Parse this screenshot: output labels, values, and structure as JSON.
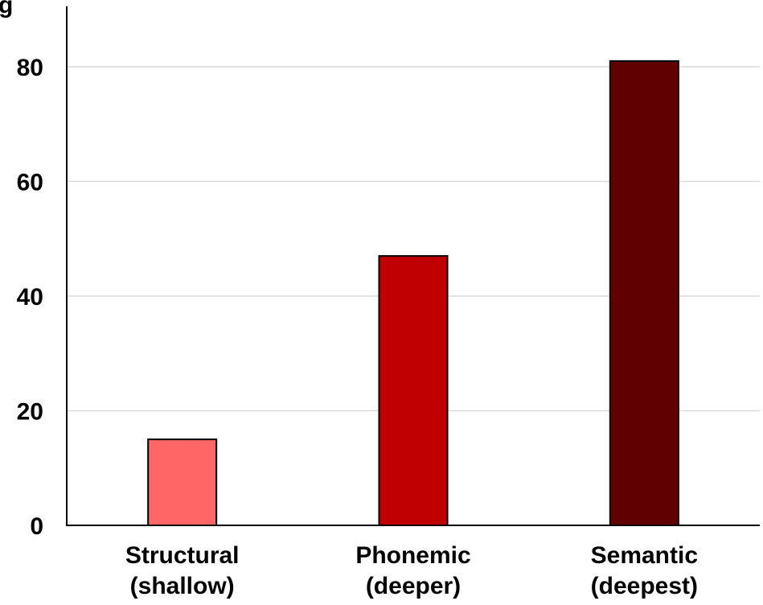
{
  "corner_glyph": "g",
  "chart_data": {
    "type": "bar",
    "title": "",
    "xlabel": "",
    "ylabel": "",
    "categories": [
      [
        "Structural",
        "(shallow)"
      ],
      [
        "Phonemic",
        "(deeper)"
      ],
      [
        "Semantic",
        "(deepest)"
      ]
    ],
    "values": [
      15,
      47,
      81
    ],
    "ylim": [
      0,
      90
    ],
    "yticks": [
      0,
      20,
      40,
      60,
      80
    ],
    "grid": true,
    "legend": "none",
    "colors": [
      "#ff6666",
      "#c00000",
      "#600000"
    ],
    "gridline_color": "#d9d9d9",
    "axis_color": "#000000",
    "bar_outline_color": "#000000"
  }
}
